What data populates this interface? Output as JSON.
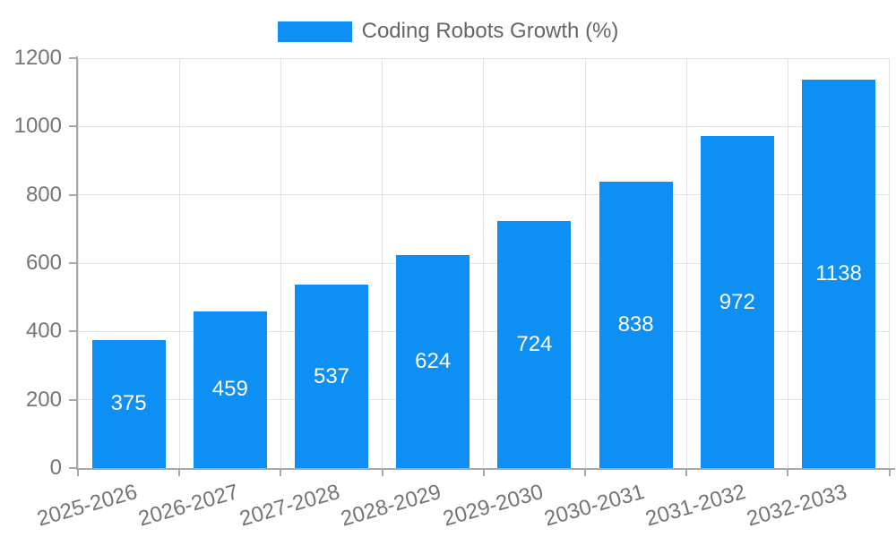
{
  "chart_data": {
    "type": "bar",
    "title": "Coding Robots Growth (%)",
    "series_name": "Coding Robots Growth (%)",
    "categories": [
      "2025-2026",
      "2026-2027",
      "2027-2028",
      "2028-2029",
      "2029-2030",
      "2030-2031",
      "2031-2032",
      "2032-2033"
    ],
    "values": [
      375,
      459,
      537,
      624,
      724,
      838,
      972,
      1138
    ],
    "xlabel": "",
    "ylabel": "",
    "ylim": [
      0,
      1200
    ],
    "yticks": [
      0,
      200,
      400,
      600,
      800,
      1000,
      1200
    ],
    "grid": true,
    "legend_position": "top",
    "bar_value_labels_inside": true,
    "x_tick_rotation_deg": -16
  },
  "colors": {
    "bar": "#0d8ff4",
    "grid": "#e3e3e3",
    "axis": "#a8a8a8",
    "tick_label": "#757575",
    "legend_text": "#666666",
    "bar_value_label": "#ffffff",
    "background": "#ffffff"
  }
}
